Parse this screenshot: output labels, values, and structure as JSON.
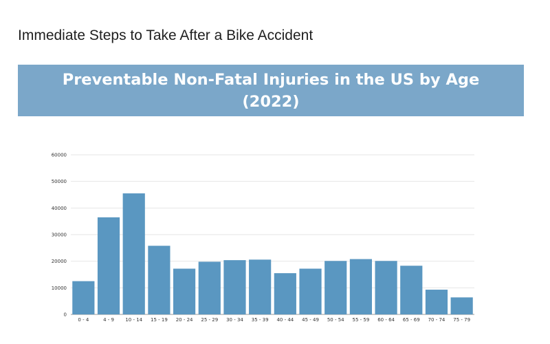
{
  "page": {
    "heading": "Immediate Steps to Take After a Bike Accident"
  },
  "colors": {
    "banner": "#7ba7c9",
    "bar": "#5a97c1",
    "grid": "#e6e6e6",
    "axis": "#9a9a9a"
  },
  "chart_data": {
    "type": "bar",
    "title_lines": [
      "Preventable Non-Fatal Injuries in the US by Age",
      "(2022)"
    ],
    "xlabel": "",
    "ylabel": "",
    "ylim": [
      0,
      60000
    ],
    "yticks": [
      0,
      10000,
      20000,
      30000,
      40000,
      50000,
      60000
    ],
    "ytick_labels": [
      "0",
      "10000",
      "20000",
      "30000",
      "40000",
      "50000",
      "60000"
    ],
    "grid": true,
    "categories": [
      "0 - 4",
      "4 - 9",
      "10 - 14",
      "15 - 19",
      "20 - 24",
      "25 - 29",
      "30 - 34",
      "35 - 39",
      "40 - 44",
      "45 - 49",
      "50 - 54",
      "55 - 59",
      "60 - 64",
      "65 - 69",
      "70 - 74",
      "75 - 79"
    ],
    "values": [
      12500,
      36500,
      45500,
      25800,
      17200,
      19800,
      20400,
      20600,
      15500,
      17200,
      20100,
      20800,
      20100,
      18300,
      9300,
      6400
    ]
  }
}
